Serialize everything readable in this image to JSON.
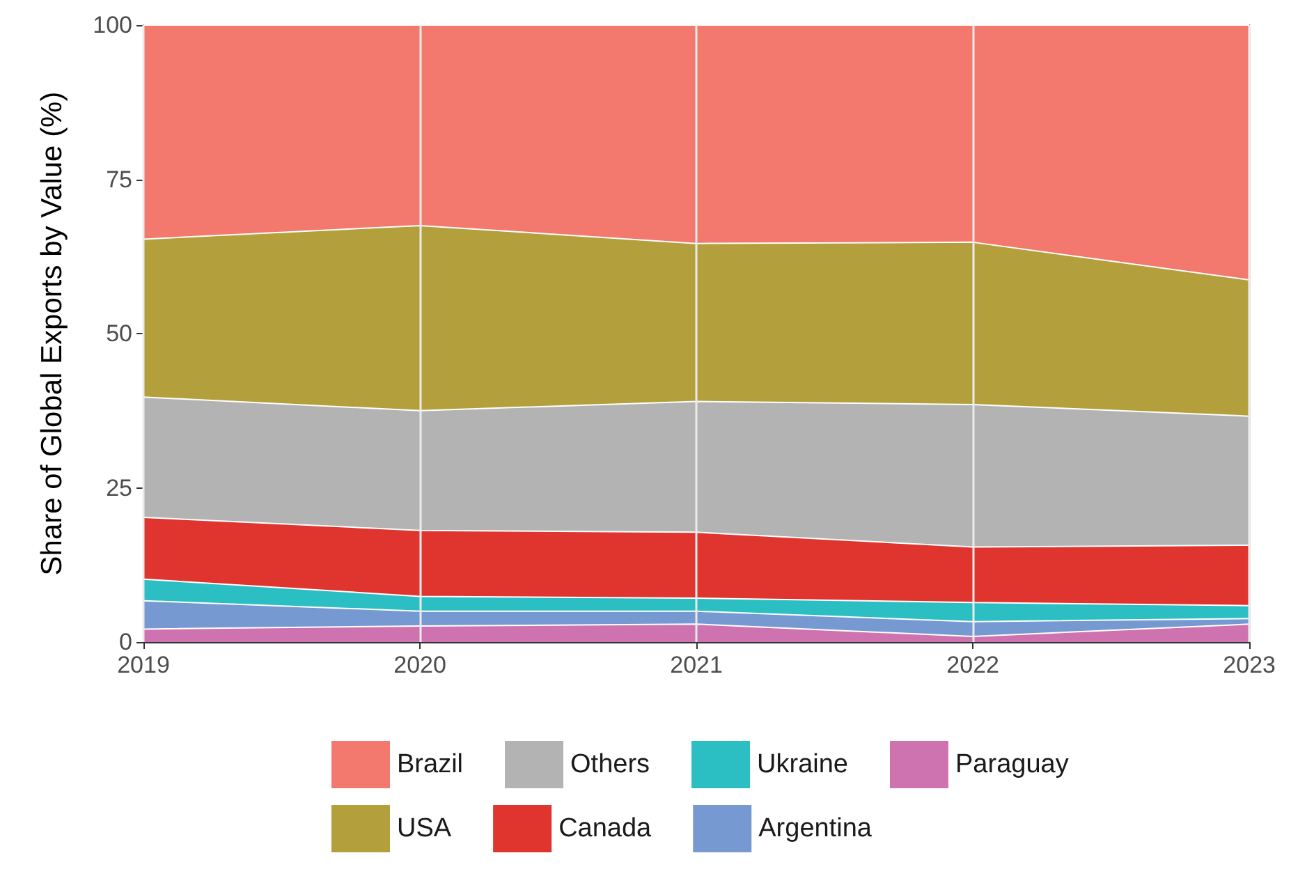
{
  "chart_data": {
    "type": "area",
    "stacked": true,
    "ylabel": "Share of Global Exports by Value (%)",
    "categories": [
      "2019",
      "2020",
      "2021",
      "2022",
      "2023"
    ],
    "ylim": [
      0,
      100
    ],
    "yticks": [
      0,
      25,
      50,
      75,
      100
    ],
    "grid": true,
    "legend": "bottom",
    "series": [
      {
        "name": "Paraguay",
        "color": "#cf73b0",
        "values": [
          2.1,
          2.6,
          2.9,
          0.9,
          2.9
        ]
      },
      {
        "name": "Argentina",
        "color": "#7799d1",
        "values": [
          4.6,
          2.4,
          2.1,
          2.4,
          0.9
        ]
      },
      {
        "name": "Ukraine",
        "color": "#2bbfc4",
        "values": [
          3.5,
          2.4,
          2.1,
          3.1,
          2.1
        ]
      },
      {
        "name": "Canada",
        "color": "#e0342f",
        "values": [
          10.0,
          10.7,
          10.7,
          9.0,
          9.8
        ]
      },
      {
        "name": "Others",
        "color": "#b3b3b3",
        "values": [
          19.5,
          19.4,
          21.2,
          23.1,
          20.9
        ]
      },
      {
        "name": "USA",
        "color": "#b3a03d",
        "values": [
          25.6,
          30.0,
          25.6,
          26.3,
          22.1
        ]
      },
      {
        "name": "Brazil",
        "color": "#f3786d",
        "values": [
          34.7,
          32.5,
          35.4,
          35.2,
          41.3
        ]
      }
    ]
  }
}
